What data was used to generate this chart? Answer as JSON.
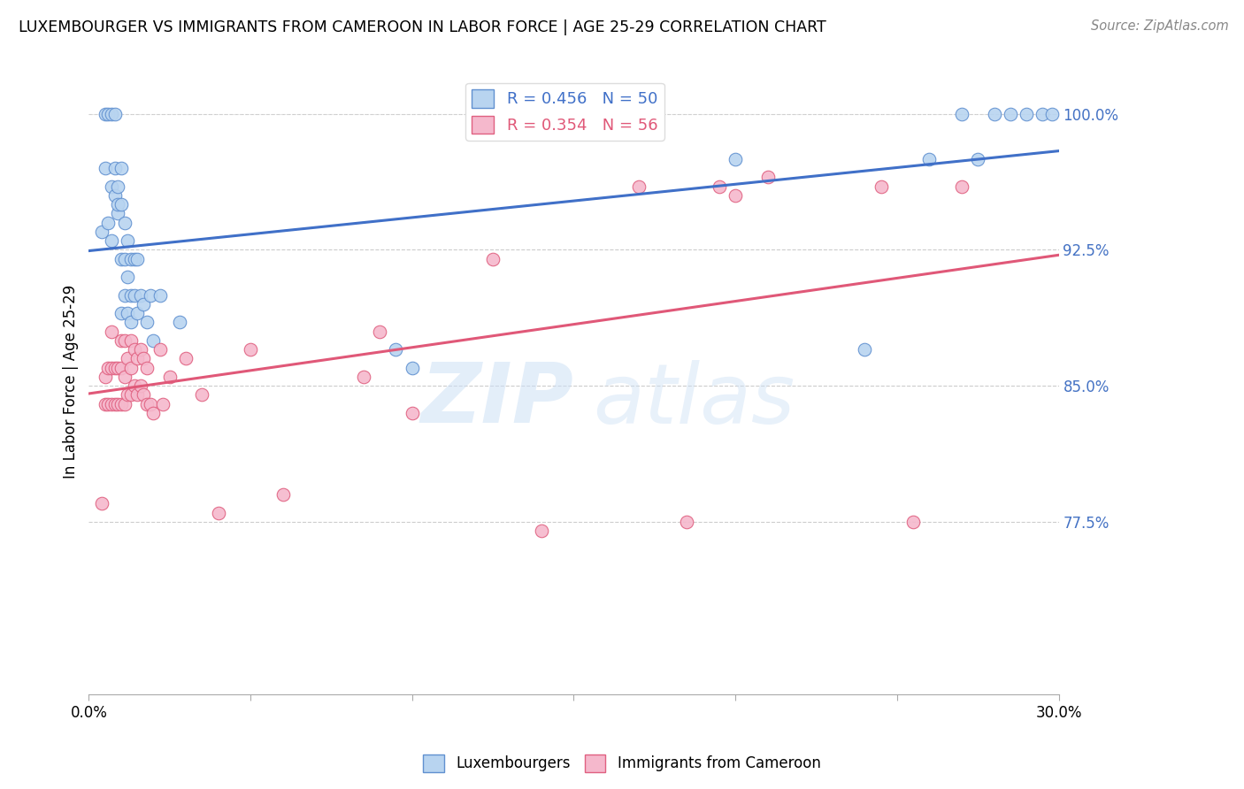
{
  "title": "LUXEMBOURGER VS IMMIGRANTS FROM CAMEROON IN LABOR FORCE | AGE 25-29 CORRELATION CHART",
  "source": "Source: ZipAtlas.com",
  "ylabel": "In Labor Force | Age 25-29",
  "xlim": [
    0.0,
    0.3
  ],
  "ylim": [
    0.68,
    1.025
  ],
  "yticks": [
    0.775,
    0.85,
    0.925,
    1.0
  ],
  "ytick_labels": [
    "77.5%",
    "85.0%",
    "92.5%",
    "100.0%"
  ],
  "xticks": [
    0.0,
    0.05,
    0.1,
    0.15,
    0.2,
    0.25,
    0.3
  ],
  "xtick_labels": [
    "0.0%",
    "",
    "",
    "",
    "",
    "",
    "30.0%"
  ],
  "lux_color": "#b8d4f0",
  "cam_color": "#f5b8cc",
  "lux_edge_color": "#6090d0",
  "cam_edge_color": "#e06080",
  "lux_line_color": "#4070c8",
  "cam_line_color": "#e05878",
  "lux_R": 0.456,
  "lux_N": 50,
  "cam_R": 0.354,
  "cam_N": 56,
  "lux_scatter_x": [
    0.004,
    0.005,
    0.005,
    0.006,
    0.006,
    0.007,
    0.007,
    0.007,
    0.008,
    0.008,
    0.008,
    0.009,
    0.009,
    0.009,
    0.01,
    0.01,
    0.01,
    0.01,
    0.011,
    0.011,
    0.011,
    0.012,
    0.012,
    0.012,
    0.013,
    0.013,
    0.013,
    0.014,
    0.014,
    0.015,
    0.015,
    0.016,
    0.017,
    0.018,
    0.019,
    0.02,
    0.022,
    0.028,
    0.095,
    0.1,
    0.2,
    0.24,
    0.26,
    0.27,
    0.275,
    0.28,
    0.285,
    0.29,
    0.295,
    0.298
  ],
  "lux_scatter_y": [
    0.935,
    0.97,
    1.0,
    0.94,
    1.0,
    0.93,
    0.96,
    1.0,
    0.955,
    0.97,
    1.0,
    0.945,
    0.95,
    0.96,
    0.89,
    0.92,
    0.95,
    0.97,
    0.9,
    0.92,
    0.94,
    0.89,
    0.91,
    0.93,
    0.885,
    0.9,
    0.92,
    0.9,
    0.92,
    0.89,
    0.92,
    0.9,
    0.895,
    0.885,
    0.9,
    0.875,
    0.9,
    0.885,
    0.87,
    0.86,
    0.975,
    0.87,
    0.975,
    1.0,
    0.975,
    1.0,
    1.0,
    1.0,
    1.0,
    1.0
  ],
  "cam_scatter_x": [
    0.004,
    0.005,
    0.005,
    0.006,
    0.006,
    0.007,
    0.007,
    0.007,
    0.008,
    0.008,
    0.009,
    0.009,
    0.01,
    0.01,
    0.01,
    0.011,
    0.011,
    0.011,
    0.012,
    0.012,
    0.013,
    0.013,
    0.013,
    0.014,
    0.014,
    0.015,
    0.015,
    0.016,
    0.016,
    0.017,
    0.017,
    0.018,
    0.018,
    0.019,
    0.02,
    0.022,
    0.023,
    0.025,
    0.03,
    0.035,
    0.04,
    0.05,
    0.06,
    0.085,
    0.09,
    0.1,
    0.125,
    0.14,
    0.17,
    0.185,
    0.195,
    0.2,
    0.21,
    0.245,
    0.255,
    0.27
  ],
  "cam_scatter_y": [
    0.785,
    0.84,
    0.855,
    0.84,
    0.86,
    0.84,
    0.86,
    0.88,
    0.84,
    0.86,
    0.84,
    0.86,
    0.84,
    0.86,
    0.875,
    0.84,
    0.855,
    0.875,
    0.845,
    0.865,
    0.845,
    0.86,
    0.875,
    0.85,
    0.87,
    0.845,
    0.865,
    0.85,
    0.87,
    0.845,
    0.865,
    0.84,
    0.86,
    0.84,
    0.835,
    0.87,
    0.84,
    0.855,
    0.865,
    0.845,
    0.78,
    0.87,
    0.79,
    0.855,
    0.88,
    0.835,
    0.92,
    0.77,
    0.96,
    0.775,
    0.96,
    0.955,
    0.965,
    0.96,
    0.775,
    0.96
  ]
}
